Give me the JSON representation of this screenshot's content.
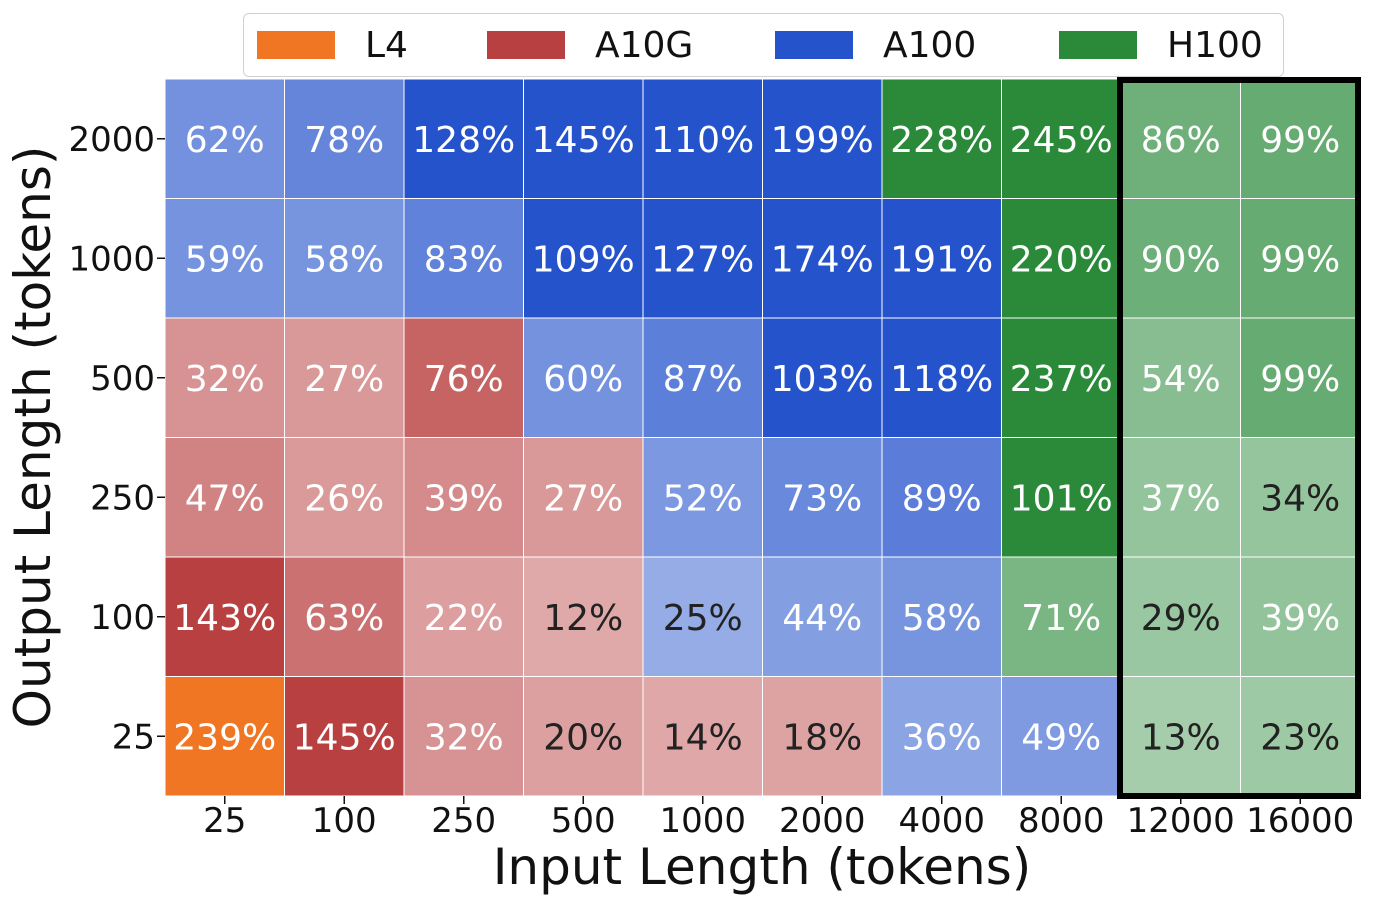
{
  "chart_data": {
    "type": "heatmap",
    "xlabel": "Input Length (tokens)",
    "ylabel": "Output Length (tokens)",
    "x_categories": [
      "25",
      "100",
      "250",
      "500",
      "1000",
      "2000",
      "4000",
      "8000",
      "12000",
      "16000"
    ],
    "y_categories": [
      "2000",
      "1000",
      "500",
      "250",
      "100",
      "25"
    ],
    "legend": {
      "placement": "top",
      "entries": [
        {
          "name": "L4",
          "color": "#f07623"
        },
        {
          "name": "A10G",
          "color": "#b94040"
        },
        {
          "name": "A100",
          "color": "#2553cc"
        },
        {
          "name": "H100",
          "color": "#2a8a3a"
        }
      ]
    },
    "highlight_columns": [
      "12000",
      "16000"
    ],
    "cells": [
      [
        {
          "gpu": "A100",
          "label": "62%",
          "value": 62
        },
        {
          "gpu": "A100",
          "label": "78%",
          "value": 78
        },
        {
          "gpu": "A100",
          "label": "128%",
          "value": 128
        },
        {
          "gpu": "A100",
          "label": "145%",
          "value": 145
        },
        {
          "gpu": "A100",
          "label": "110%",
          "value": 110
        },
        {
          "gpu": "A100",
          "label": "199%",
          "value": 199
        },
        {
          "gpu": "H100",
          "label": "228%",
          "value": 228
        },
        {
          "gpu": "H100",
          "label": "245%",
          "value": 245
        },
        {
          "gpu": "H100",
          "label": "86%",
          "value": 86
        },
        {
          "gpu": "H100",
          "label": "99%",
          "value": 99
        }
      ],
      [
        {
          "gpu": "A100",
          "label": "59%",
          "value": 59
        },
        {
          "gpu": "A100",
          "label": "58%",
          "value": 58
        },
        {
          "gpu": "A100",
          "label": "83%",
          "value": 83
        },
        {
          "gpu": "A100",
          "label": "109%",
          "value": 109
        },
        {
          "gpu": "A100",
          "label": "127%",
          "value": 127
        },
        {
          "gpu": "A100",
          "label": "174%",
          "value": 174
        },
        {
          "gpu": "A100",
          "label": "191%",
          "value": 191
        },
        {
          "gpu": "H100",
          "label": "220%",
          "value": 220
        },
        {
          "gpu": "H100",
          "label": "90%",
          "value": 90
        },
        {
          "gpu": "H100",
          "label": "99%",
          "value": 99
        }
      ],
      [
        {
          "gpu": "A10G",
          "label": "32%",
          "value": 32
        },
        {
          "gpu": "A10G",
          "label": "27%",
          "value": 27
        },
        {
          "gpu": "A10G",
          "label": "76%",
          "value": 76
        },
        {
          "gpu": "A100",
          "label": "60%",
          "value": 60
        },
        {
          "gpu": "A100",
          "label": "87%",
          "value": 87
        },
        {
          "gpu": "A100",
          "label": "103%",
          "value": 103
        },
        {
          "gpu": "A100",
          "label": "118%",
          "value": 118
        },
        {
          "gpu": "H100",
          "label": "237%",
          "value": 237
        },
        {
          "gpu": "H100",
          "label": "54%",
          "value": 54
        },
        {
          "gpu": "H100",
          "label": "99%",
          "value": 99
        }
      ],
      [
        {
          "gpu": "A10G",
          "label": "47%",
          "value": 47
        },
        {
          "gpu": "A10G",
          "label": "26%",
          "value": 26
        },
        {
          "gpu": "A10G",
          "label": "39%",
          "value": 39
        },
        {
          "gpu": "A10G",
          "label": "27%",
          "value": 27
        },
        {
          "gpu": "A100",
          "label": "52%",
          "value": 52
        },
        {
          "gpu": "A100",
          "label": "73%",
          "value": 73
        },
        {
          "gpu": "A100",
          "label": "89%",
          "value": 89
        },
        {
          "gpu": "H100",
          "label": "101%",
          "value": 101
        },
        {
          "gpu": "H100",
          "label": "37%",
          "value": 37
        },
        {
          "gpu": "H100",
          "label": "34%",
          "value": 34
        }
      ],
      [
        {
          "gpu": "A10G",
          "label": "143%",
          "value": 143
        },
        {
          "gpu": "A10G",
          "label": "63%",
          "value": 63
        },
        {
          "gpu": "A10G",
          "label": "22%",
          "value": 22
        },
        {
          "gpu": "A10G",
          "label": "12%",
          "value": 12
        },
        {
          "gpu": "A100",
          "label": "25%",
          "value": 25
        },
        {
          "gpu": "A100",
          "label": "44%",
          "value": 44
        },
        {
          "gpu": "A100",
          "label": "58%",
          "value": 58
        },
        {
          "gpu": "H100",
          "label": "71%",
          "value": 71
        },
        {
          "gpu": "H100",
          "label": "29%",
          "value": 29
        },
        {
          "gpu": "H100",
          "label": "39%",
          "value": 39
        }
      ],
      [
        {
          "gpu": "L4",
          "label": "239%",
          "value": 239
        },
        {
          "gpu": "A10G",
          "label": "145%",
          "value": 145
        },
        {
          "gpu": "A10G",
          "label": "32%",
          "value": 32
        },
        {
          "gpu": "A10G",
          "label": "20%",
          "value": 20
        },
        {
          "gpu": "A10G",
          "label": "14%",
          "value": 14
        },
        {
          "gpu": "A10G",
          "label": "18%",
          "value": 18
        },
        {
          "gpu": "A100",
          "label": "36%",
          "value": 36
        },
        {
          "gpu": "A100",
          "label": "49%",
          "value": 49
        },
        {
          "gpu": "H100",
          "label": "13%",
          "value": 13
        },
        {
          "gpu": "H100",
          "label": "23%",
          "value": 23
        }
      ]
    ]
  }
}
